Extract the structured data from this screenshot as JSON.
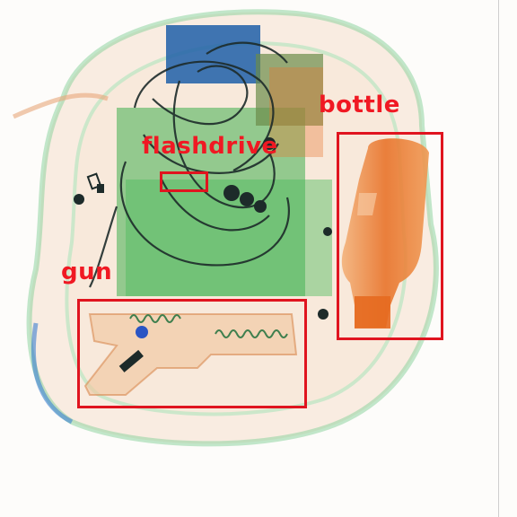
{
  "image": {
    "kind": "x-ray-baggage-scan",
    "background_color": "#fdfcfa"
  },
  "detections": [
    {
      "label": "bottle",
      "box_color": "#e0141f",
      "text_color": "#f01923"
    },
    {
      "label": "flashdrive",
      "box_color": "#e0141f",
      "text_color": "#f01923"
    },
    {
      "label": "gun",
      "box_color": "#e0141f",
      "text_color": "#f01923"
    }
  ],
  "colors": {
    "organic_orange": "#e8732a",
    "inorganic_green": "#3fae4e",
    "dense_blue": "#1f5fa8",
    "wire_dark": "#1d2b2a"
  }
}
